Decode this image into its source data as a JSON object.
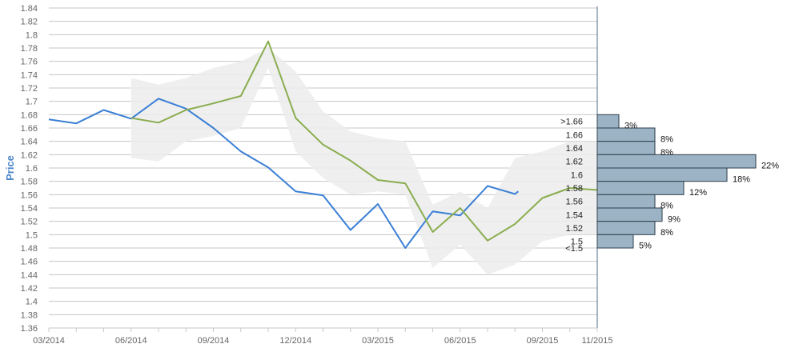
{
  "chart_data": {
    "type": "line",
    "ylabel": "Price",
    "xlabel": "",
    "ylim": [
      1.36,
      1.84
    ],
    "y_ticks": [
      "1.36",
      "1.38",
      "1.4",
      "1.42",
      "1.44",
      "1.46",
      "1.48",
      "1.5",
      "1.52",
      "1.54",
      "1.56",
      "1.58",
      "1.6",
      "1.62",
      "1.64",
      "1.66",
      "1.68",
      "1.7",
      "1.72",
      "1.74",
      "1.76",
      "1.78",
      "1.8",
      "1.82",
      "1.84"
    ],
    "x_tick_labels": [
      "03/2014",
      "06/2014",
      "09/2014",
      "12/2014",
      "03/2015",
      "06/2015",
      "09/2015",
      "11/2015"
    ],
    "months": [
      "03/2014",
      "04/2014",
      "05/2014",
      "06/2014",
      "07/2014",
      "08/2014",
      "09/2014",
      "10/2014",
      "11/2014",
      "12/2014",
      "01/2015",
      "02/2015",
      "03/2015",
      "04/2015",
      "05/2015",
      "06/2015",
      "07/2015",
      "08/2015",
      "09/2015",
      "10/2015",
      "11/2015"
    ],
    "grid": true,
    "series": [
      {
        "color": "#3a7fd5",
        "x": [
          "03/2014",
          "04/2014",
          "05/2014",
          "06/2014",
          "07/2014",
          "08/2014",
          "09/2014",
          "10/2014",
          "11/2014",
          "12/2014",
          "01/2015",
          "02/2015",
          "03/2015",
          "04/2015",
          "05/2015",
          "06/2015",
          "07/2015",
          "08/2015",
          "08/2015"
        ],
        "values": [
          1.673,
          1.667,
          1.687,
          1.674,
          1.704,
          1.689,
          1.66,
          1.625,
          1.601,
          1.565,
          1.559,
          1.507,
          1.546,
          1.48,
          1.535,
          1.529,
          1.573,
          1.561,
          1.565
        ]
      },
      {
        "color": "#8aad4f",
        "x": [
          "06/2014",
          "07/2014",
          "08/2014",
          "09/2014",
          "10/2014",
          "11/2014",
          "12/2014",
          "01/2015",
          "02/2015",
          "03/2015",
          "04/2015",
          "05/2015",
          "06/2015",
          "07/2015",
          "08/2015",
          "09/2015",
          "10/2015",
          "11/2015",
          "11/2015"
        ],
        "values": [
          1.675,
          1.668,
          1.687,
          1.697,
          1.708,
          1.79,
          1.675,
          1.635,
          1.611,
          1.582,
          1.577,
          1.504,
          1.54,
          1.491,
          1.516,
          1.555,
          1.57,
          1.567,
          1.585
        ]
      }
    ],
    "band": {
      "color": "#ececec",
      "x": [
        "06/2014",
        "07/2014",
        "08/2014",
        "09/2014",
        "10/2014",
        "11/2014",
        "12/2014",
        "01/2015",
        "02/2015",
        "03/2015",
        "04/2015",
        "05/2015",
        "06/2015",
        "07/2015",
        "08/2015",
        "09/2015",
        "10/2015",
        "11/2015"
      ],
      "upper": [
        1.735,
        1.725,
        1.735,
        1.75,
        1.76,
        1.78,
        1.745,
        1.685,
        1.655,
        1.645,
        1.64,
        1.545,
        1.565,
        1.54,
        1.615,
        1.625,
        1.64,
        1.64
      ],
      "lower": [
        1.615,
        1.61,
        1.64,
        1.648,
        1.66,
        1.75,
        1.625,
        1.585,
        1.56,
        1.565,
        1.56,
        1.45,
        1.485,
        1.44,
        1.455,
        1.49,
        1.5,
        1.5
      ]
    },
    "histogram": {
      "bar_color": "#9bb3c4",
      "bins": [
        {
          "label": ">1.66",
          "y": 1.67,
          "pct": 3,
          "pct_label": "3%"
        },
        {
          "label": "1.66",
          "y": 1.65,
          "pct": 8,
          "pct_label": "8%"
        },
        {
          "label": "1.64",
          "y": 1.63,
          "pct": 8,
          "pct_label": "8%"
        },
        {
          "label": "1.62",
          "y": 1.61,
          "pct": 22,
          "pct_label": "22%"
        },
        {
          "label": "1.6",
          "y": 1.59,
          "pct": 18,
          "pct_label": "18%"
        },
        {
          "label": "1.58",
          "y": 1.57,
          "pct": 12,
          "pct_label": "12%"
        },
        {
          "label": "1.56",
          "y": 1.55,
          "pct": 8,
          "pct_label": "8%"
        },
        {
          "label": "1.54",
          "y": 1.53,
          "pct": 9,
          "pct_label": "9%"
        },
        {
          "label": "1.52",
          "y": 1.51,
          "pct": 8,
          "pct_label": "8%"
        },
        {
          "label": "1.5",
          "y": 1.49,
          "pct": 5,
          "pct_label": "5%"
        },
        {
          "label": "<1.5",
          "y": 1.48,
          "pct": 0,
          "pct_label": ""
        }
      ]
    }
  }
}
